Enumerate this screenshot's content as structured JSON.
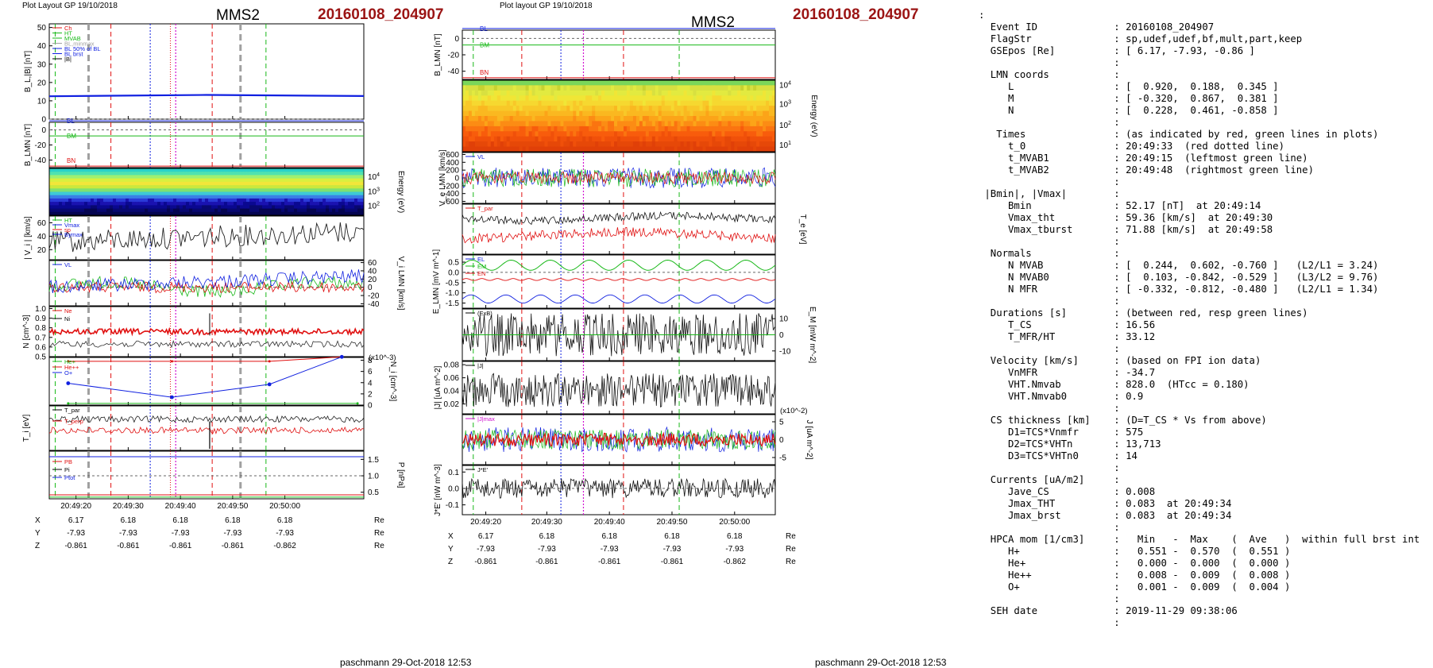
{
  "header": {
    "left_small": "Plot Layout GP 19/10/2018",
    "left_spacecraft": "MMS2",
    "left_event": "20160108_204907",
    "right_small": "Plot layout GP 19/10/2018",
    "right_spacecraft": "MMS2",
    "right_event": "20160108_204907"
  },
  "footer": {
    "left": "paschmann 29-Oct-2018 12:53",
    "right": "paschmann 29-Oct-2018 12:53"
  },
  "colors": {
    "red": "#e01010",
    "green": "#18b818",
    "blue": "#1020e0",
    "magenta": "#d010d0",
    "gray": "#a0a0a0",
    "black": "#000000",
    "event_red": "#9b1414"
  },
  "chart_data": [
    {
      "type": "line",
      "column": "left",
      "panel": "magnetic-field-magnitude",
      "ylabel": "B_L,|B| [nT]",
      "yticks": [
        "50",
        "40",
        "30",
        "20",
        "10",
        "0"
      ],
      "ylim": [
        0,
        52
      ],
      "legend": [
        "Ch",
        "HT",
        "MVAB",
        "BL,minmax",
        "BL 50% of BL",
        "BL brst",
        "|B|"
      ],
      "series": [
        {
          "name": "BL brst",
          "color": "blue",
          "x": [
            0,
            0.5,
            1
          ],
          "values": [
            12.5,
            13.2,
            12.6
          ]
        }
      ]
    },
    {
      "type": "line",
      "column": "left",
      "panel": "B-LMN",
      "ylabel": "B_LMN [nT]",
      "yticks": [
        "0",
        "-20",
        "-40"
      ],
      "ylim": [
        -50,
        10
      ],
      "legend": [
        "BL",
        "BM",
        "BN"
      ],
      "series": [
        {
          "name": "BL",
          "color": "blue",
          "values": [
            12,
            12,
            12
          ]
        },
        {
          "name": "BM",
          "color": "green",
          "values": [
            -8,
            -8,
            -8
          ]
        },
        {
          "name": "BN",
          "color": "red",
          "values": [
            -48,
            -48,
            -48
          ]
        }
      ]
    },
    {
      "type": "heatmap",
      "column": "left",
      "panel": "ion-energy-spectrogram",
      "ylabel": "Energy (eV)",
      "yticks": [
        "10^4",
        "10^3",
        "10^2"
      ]
    },
    {
      "type": "line",
      "column": "left",
      "panel": "ion-velocity-magnitude",
      "ylabel": "| V_i | [km/s]",
      "yticks": [
        "60",
        "40",
        "20"
      ],
      "ylim": [
        5,
        70
      ],
      "legend": [
        "HT",
        "Vmax",
        "sp",
        "Bymax"
      ]
    },
    {
      "type": "line",
      "column": "left",
      "panel": "ion-velocity-LMN",
      "ylabel": "V_i LMN [km/s]",
      "yticks": [
        "60",
        "40",
        "20",
        "0",
        "-20",
        "-40"
      ],
      "ylim": [
        -45,
        65
      ],
      "legend": [
        "VL"
      ]
    },
    {
      "type": "line",
      "column": "left",
      "panel": "density",
      "ylabel": "N [cm^-3]",
      "yticks": [
        "1.0",
        "0.9",
        "0.8",
        "0.7",
        "0.6",
        "0.5"
      ],
      "ylim": [
        0.5,
        1.02
      ],
      "legend": [
        "Ne",
        "Ni"
      ]
    },
    {
      "type": "line",
      "column": "left",
      "panel": "hpca-density",
      "ylabel": "N_i [cm^-3]",
      "scale_label": "(x10^-3)",
      "yticks": [
        "8",
        "6",
        "4",
        "2",
        "0"
      ],
      "ylim": [
        0,
        8.5
      ],
      "legend": [
        "He+",
        "He++",
        "O+"
      ],
      "series": [
        {
          "name": "He++",
          "color": "red",
          "x": [
            0,
            0.38,
            0.75,
            1
          ],
          "values": [
            7.8,
            7.8,
            7.8,
            8.6
          ]
        },
        {
          "name": "O+",
          "color": "blue",
          "x": [
            0,
            0.38,
            0.75,
            1
          ],
          "values": [
            3.9,
            1.4,
            3.7,
            8.6
          ]
        },
        {
          "name": "He+",
          "color": "green",
          "x": [
            0,
            1
          ],
          "values": [
            0.3,
            0.3
          ]
        }
      ]
    },
    {
      "type": "line",
      "column": "left",
      "panel": "ion-temperature",
      "ylabel": "T_i [eV]",
      "legend": [
        "T_par",
        "T_perp"
      ]
    },
    {
      "type": "line",
      "column": "left",
      "panel": "pressure",
      "ylabel": "P [nPa]",
      "yticks": [
        "1.5",
        "1.0",
        "0.5"
      ],
      "ylim": [
        0.3,
        1.75
      ],
      "legend": [
        "PB",
        "Pi",
        "Ptot"
      ],
      "series": [
        {
          "name": "PB",
          "color": "blue",
          "values": [
            1.58,
            1.58,
            1.58
          ]
        },
        {
          "name": "Pi",
          "color": "red",
          "values": [
            0.42,
            0.42,
            0.42
          ]
        },
        {
          "name": "Ptot",
          "color": "green",
          "values": [
            0.35,
            0.35,
            0.35
          ]
        }
      ]
    },
    {
      "type": "line",
      "column": "right",
      "panel": "B-LMN",
      "ylabel": "B_LMN [nT]",
      "yticks": [
        "0",
        "-20",
        "-40"
      ],
      "ylim": [
        -50,
        10
      ],
      "legend": [
        "BL",
        "BM",
        "BN"
      ],
      "series": [
        {
          "name": "BL",
          "color": "blue",
          "values": [
            12,
            12,
            12
          ]
        },
        {
          "name": "BM",
          "color": "green",
          "values": [
            -8,
            -8,
            -8
          ]
        },
        {
          "name": "BN",
          "color": "red",
          "values": [
            -48,
            -48,
            -48
          ]
        }
      ]
    },
    {
      "type": "heatmap",
      "column": "right",
      "panel": "electron-energy-spectrogram",
      "ylabel": "Energy (eV)",
      "yticks": [
        "10^4",
        "10^3",
        "10^2",
        "10^1"
      ]
    },
    {
      "type": "line",
      "column": "right",
      "panel": "electron-velocity-LMN",
      "ylabel": "V_e LMN [km/s]",
      "yticks": [
        "600",
        "400",
        "200",
        "0",
        "-200",
        "-400",
        "-600"
      ],
      "ylim": [
        -650,
        650
      ],
      "legend": [
        "VL"
      ]
    },
    {
      "type": "line",
      "column": "right",
      "panel": "electron-temperature",
      "ylabel": "T_e [eV]",
      "legend": [
        "T_par"
      ]
    },
    {
      "type": "line",
      "column": "right",
      "panel": "electric-field-LMN",
      "ylabel": "E_LMN [mV m^-1]",
      "yticks": [
        "0.5",
        "0.0",
        "-0.5",
        "-1.0",
        "-1.5"
      ],
      "ylim": [
        -1.75,
        0.85
      ],
      "legend": [
        "EL",
        "EM",
        "EN"
      ]
    },
    {
      "type": "line",
      "column": "right",
      "panel": "poynting-M",
      "ylabel": "E_M [mW m^-2]",
      "yticks": [
        "10",
        "0",
        "-10"
      ],
      "ylim": [
        -16,
        16
      ],
      "legend": [
        "(ExB)"
      ]
    },
    {
      "type": "line",
      "column": "right",
      "panel": "current-magnitude",
      "ylabel": "|J| [uA m^-2]",
      "yticks": [
        "0.08",
        "0.06",
        "0.04",
        "0.02"
      ],
      "ylim": [
        0.005,
        0.085
      ],
      "legend": [
        "|J|"
      ]
    },
    {
      "type": "line",
      "column": "right",
      "panel": "current-LMN",
      "ylabel": "J [uA m^-2]",
      "scale_label": "(x10^-2)",
      "yticks": [
        "5",
        "0",
        "-5"
      ],
      "ylim": [
        -7,
        7
      ],
      "legend": [
        "|J|max"
      ]
    },
    {
      "type": "line",
      "column": "right",
      "panel": "J-dot-E",
      "ylabel": "J*E' [nW m^-3]",
      "yticks": [
        "0.1",
        "0.0",
        "-0.1"
      ],
      "ylim": [
        -0.16,
        0.14
      ],
      "legend": [
        "J*E'"
      ]
    }
  ],
  "time_axis": {
    "ticks": [
      "20:49:20",
      "20:49:30",
      "20:49:40",
      "20:49:50",
      "20:50:00"
    ],
    "rows": [
      {
        "name": "X",
        "values": [
          "6.17",
          "6.18",
          "6.18",
          "6.18",
          "6.18"
        ],
        "unit": "Re"
      },
      {
        "name": "Y",
        "values": [
          "-7.93",
          "-7.93",
          "-7.93",
          "-7.93",
          "-7.93"
        ],
        "unit": "Re"
      },
      {
        "name": "Z",
        "values": [
          "-0.861",
          "-0.861",
          "-0.861",
          "-0.861",
          "-0.862"
        ],
        "unit": "Re"
      }
    ]
  },
  "summary_lines": [
    ":",
    "  Event ID             : 20160108_204907",
    "  FlagStr              : sp,udef,udef,bf,mult,part,keep",
    "  GSEpos [Re]          : [ 6.17, -7.93, -0.86 ]",
    "                       :",
    "  LMN coords           :",
    "     L                 : [  0.920,  0.188,  0.345 ]",
    "     M                 : [ -0.320,  0.867,  0.381 ]",
    "     N                 : [  0.228,  0.461, -0.858 ]",
    "                       :",
    "   Times               : (as indicated by red, green lines in plots)",
    "     t_0               : 20:49:33  (red dotted line)",
    "     t_MVAB1           : 20:49:15  (leftmost green line)",
    "     t_MVAB2           : 20:49:48  (rightmost green line)",
    "                       :",
    " |Bmin|, |Vmax|        :",
    "     Bmin              : 52.17 [nT]  at 20:49:14",
    "     Vmax_tht          : 59.36 [km/s]  at 20:49:30",
    "     Vmax_tburst       : 71.88 [km/s]  at 20:49:58",
    "                       :",
    "  Normals              :",
    "     N MVAB            : [  0.244,  0.602, -0.760 ]   (L2/L1 = 3.24)",
    "     N MVAB0           : [  0.103, -0.842, -0.529 ]   (L3/L2 = 9.76)",
    "     N MFR             : [ -0.332, -0.812, -0.480 ]   (L2/L1 = 1.34)",
    "                       :",
    "  Durations [s]        : (between red, resp green lines)",
    "     T_CS              : 16.56",
    "     T_MFR/HT          : 33.12",
    "                       :",
    "  Velocity [km/s]      : (based on FPI ion data)",
    "     VnMFR             : -34.7",
    "     VHT.Nmvab         : 828.0  (HTcc = 0.180)",
    "     VHT.Nmvab0        : 0.9",
    "                       :",
    "  CS thickness [km]    : (D=T_CS * Vs from above)",
    "     D1=TCS*Vnmfr      : 575",
    "     D2=TCS*VHTn       : 13,713",
    "     D3=TCS*VHTn0      : 14",
    "                       :",
    "  Currents [uA/m2]     :",
    "     Jave_CS           : 0.008",
    "     Jmax_THT          : 0.083  at 20:49:34",
    "     Jmax_brst         : 0.083  at 20:49:34",
    "                       :",
    "  HPCA mom [1/cm3]     :   Min   -  Max    (  Ave   )  within full brst int",
    "     H+                :   0.551 -  0.570  (  0.551 )",
    "     He+               :   0.000 -  0.000  (  0.000 )",
    "     He++              :   0.008 -  0.009  (  0.008 )",
    "     O+                :   0.001 -  0.009  (  0.004 )",
    "                       :",
    "  SEH date             : 2019-11-29 09:38:06",
    "                       :"
  ]
}
